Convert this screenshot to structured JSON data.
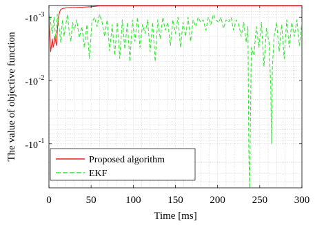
{
  "chart_data": {
    "type": "line",
    "title": "",
    "xlabel": "Time [ms]",
    "ylabel": "The value of objective function",
    "xlim": [
      0,
      300
    ],
    "xticks": [
      0,
      50,
      100,
      150,
      200,
      250,
      300
    ],
    "x_tick_labels": [
      "0",
      "50",
      "100",
      "150",
      "200",
      "250",
      "300"
    ],
    "ylim": [
      -0.5,
      -0.00065
    ],
    "y_scale": "symlog (log of magnitude, reversed)",
    "y_ticks": [
      -0.001,
      -0.01,
      -0.1
    ],
    "y_tick_labels": [
      {
        "base": "-10",
        "exp": "-3"
      },
      {
        "base": "-10",
        "exp": "-2"
      },
      {
        "base": "-10",
        "exp": "-1"
      }
    ],
    "grid": "major and minor, dotted",
    "legend_position": "bottom-left",
    "series": [
      {
        "name": "Proposed algorithm",
        "color": "#e8201c",
        "style": "solid",
        "x": [
          0,
          1,
          2,
          3,
          4,
          5,
          6,
          7,
          8,
          9,
          10,
          11,
          12,
          13,
          14,
          15,
          16,
          17,
          18,
          20,
          25,
          30,
          40,
          50,
          60,
          100,
          150,
          200,
          250,
          300
        ],
        "y": [
          -0.0008,
          -0.002,
          -0.0035,
          -0.0028,
          -0.0022,
          -0.003,
          -0.0026,
          -0.002,
          -0.0024,
          -0.0028,
          -0.0016,
          -0.0011,
          -0.0009,
          -0.0008,
          -0.00075,
          -0.00074,
          -0.00073,
          -0.00072,
          -0.00072,
          -0.00071,
          -0.0007,
          -0.0007,
          -0.00069,
          -0.00068,
          -0.00066,
          -0.00066,
          -0.00066,
          -0.00066,
          -0.00066,
          -0.00066
        ]
      },
      {
        "name": "EKF",
        "color": "#2ee82e",
        "style": "dashed",
        "x": [
          0,
          2,
          4,
          6,
          8,
          10,
          12,
          14,
          16,
          18,
          20,
          22,
          24,
          26,
          28,
          30,
          33,
          36,
          39,
          42,
          45,
          48,
          51,
          54,
          57,
          60,
          63,
          66,
          69,
          72,
          75,
          78,
          81,
          84,
          87,
          90,
          93,
          96,
          99,
          102,
          105,
          108,
          111,
          114,
          117,
          120,
          123,
          126,
          129,
          132,
          135,
          138,
          141,
          144,
          147,
          150,
          153,
          156,
          159,
          162,
          165,
          168,
          171,
          174,
          177,
          180,
          183,
          186,
          189,
          192,
          195,
          198,
          201,
          204,
          207,
          210,
          213,
          216,
          219,
          222,
          225,
          228,
          231,
          234,
          236,
          237,
          238,
          240,
          243,
          246,
          249,
          252,
          255,
          258,
          261,
          263,
          264,
          265,
          267,
          270,
          273,
          276,
          279,
          282,
          285,
          288,
          291,
          294,
          297,
          300
        ],
        "y": [
          -0.0008,
          -0.0012,
          -0.0018,
          -0.001,
          -0.0022,
          -0.0009,
          -0.0014,
          -0.0025,
          -0.0011,
          -0.002,
          -0.0013,
          -0.0009,
          -0.0017,
          -0.0024,
          -0.0012,
          -0.0016,
          -0.0011,
          -0.0021,
          -0.0014,
          -0.003,
          -0.0013,
          -0.0045,
          -0.0012,
          -0.001,
          -0.0014,
          -0.0009,
          -0.0012,
          -0.002,
          -0.0011,
          -0.0034,
          -0.0013,
          -0.004,
          -0.0012,
          -0.0045,
          -0.0011,
          -0.0032,
          -0.0012,
          -0.005,
          -0.0011,
          -0.0024,
          -0.001,
          -0.003,
          -0.0013,
          -0.0018,
          -0.0011,
          -0.0035,
          -0.0012,
          -0.005,
          -0.0011,
          -0.0022,
          -0.001,
          -0.0016,
          -0.0012,
          -0.0028,
          -0.0011,
          -0.0018,
          -0.001,
          -0.003,
          -0.0012,
          -0.002,
          -0.001,
          -0.0024,
          -0.0011,
          -0.0014,
          -0.001,
          -0.0012,
          -0.0011,
          -0.0016,
          -0.001,
          -0.0013,
          -0.0009,
          -0.0011,
          -0.0012,
          -0.001,
          -0.0015,
          -0.0011,
          -0.0012,
          -0.001,
          -0.0016,
          -0.0011,
          -0.0013,
          -0.002,
          -0.0012,
          -0.0025,
          -0.0014,
          -0.12,
          -0.5,
          -0.003,
          -0.004,
          -0.0014,
          -0.003,
          -0.0012,
          -0.006,
          -0.0015,
          -0.0025,
          -0.012,
          -0.1,
          -0.006,
          -0.002,
          -0.0012,
          -0.0035,
          -0.0013,
          -0.0045,
          -0.0011,
          -0.003,
          -0.0012,
          -0.002,
          -0.0011,
          -0.0028,
          -0.0012
        ]
      }
    ]
  }
}
